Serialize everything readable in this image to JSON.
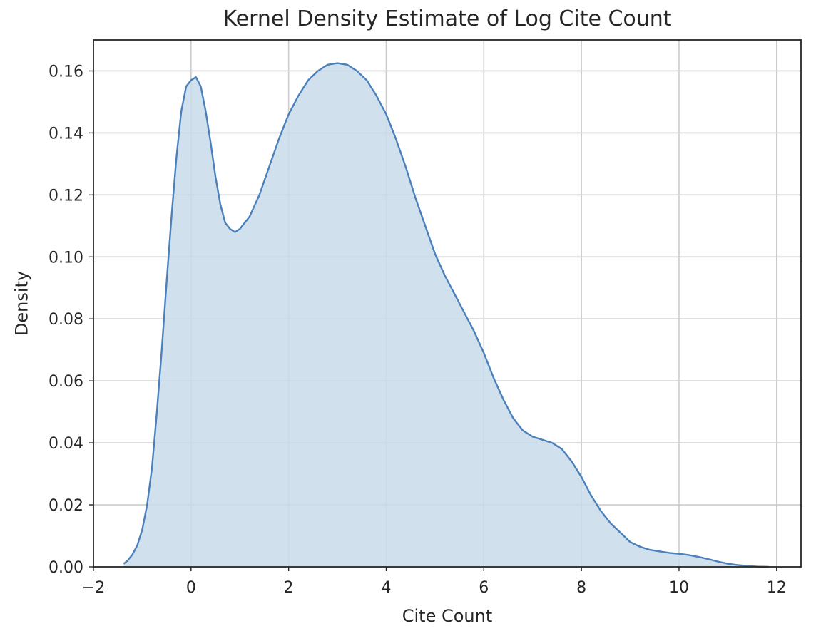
{
  "chart_data": {
    "type": "area",
    "title": "Kernel Density Estimate of Log Cite Count",
    "xlabel": "Cite Count",
    "ylabel": "Density",
    "xlim": [
      -2,
      12.5
    ],
    "ylim": [
      0,
      0.17
    ],
    "xticks": [
      -2,
      0,
      2,
      4,
      6,
      8,
      10,
      12
    ],
    "xtick_labels": [
      "−2",
      "0",
      "2",
      "4",
      "6",
      "8",
      "10",
      "12"
    ],
    "yticks": [
      0.0,
      0.02,
      0.04,
      0.06,
      0.08,
      0.1,
      0.12,
      0.14,
      0.16
    ],
    "ytick_labels": [
      "0.00",
      "0.02",
      "0.04",
      "0.06",
      "0.08",
      "0.10",
      "0.12",
      "0.14",
      "0.16"
    ],
    "grid": true,
    "colors": {
      "line": "#4a80bb",
      "fill": "#c9daea",
      "grid": "#cccccc",
      "axis": "#262626"
    },
    "series": [
      {
        "x": [
          -1.38,
          -1.3,
          -1.2,
          -1.1,
          -1.0,
          -0.9,
          -0.8,
          -0.7,
          -0.6,
          -0.5,
          -0.4,
          -0.3,
          -0.2,
          -0.1,
          0.0,
          0.1,
          0.2,
          0.3,
          0.4,
          0.5,
          0.6,
          0.7,
          0.8,
          0.9,
          1.0,
          1.2,
          1.4,
          1.6,
          1.8,
          2.0,
          2.2,
          2.4,
          2.6,
          2.8,
          3.0,
          3.2,
          3.4,
          3.6,
          3.8,
          4.0,
          4.2,
          4.4,
          4.6,
          4.8,
          5.0,
          5.2,
          5.4,
          5.6,
          5.8,
          6.0,
          6.2,
          6.4,
          6.6,
          6.8,
          7.0,
          7.2,
          7.4,
          7.6,
          7.8,
          8.0,
          8.2,
          8.4,
          8.6,
          8.8,
          9.0,
          9.2,
          9.4,
          9.6,
          9.8,
          10.0,
          10.2,
          10.4,
          10.6,
          10.8,
          11.0,
          11.2,
          11.4,
          11.6,
          11.84
        ],
        "y": [
          0.001,
          0.002,
          0.004,
          0.007,
          0.012,
          0.02,
          0.032,
          0.05,
          0.07,
          0.092,
          0.113,
          0.132,
          0.147,
          0.155,
          0.157,
          0.158,
          0.155,
          0.147,
          0.137,
          0.126,
          0.117,
          0.111,
          0.109,
          0.108,
          0.109,
          0.113,
          0.12,
          0.129,
          0.138,
          0.146,
          0.152,
          0.157,
          0.16,
          0.162,
          0.1625,
          0.162,
          0.16,
          0.157,
          0.152,
          0.146,
          0.138,
          0.129,
          0.119,
          0.11,
          0.101,
          0.094,
          0.088,
          0.082,
          0.076,
          0.069,
          0.061,
          0.054,
          0.048,
          0.044,
          0.042,
          0.041,
          0.04,
          0.038,
          0.034,
          0.029,
          0.023,
          0.018,
          0.014,
          0.011,
          0.008,
          0.0065,
          0.0055,
          0.005,
          0.0045,
          0.0042,
          0.0038,
          0.0032,
          0.0025,
          0.0017,
          0.001,
          0.0006,
          0.0003,
          0.0001,
          0.0
        ]
      }
    ]
  }
}
